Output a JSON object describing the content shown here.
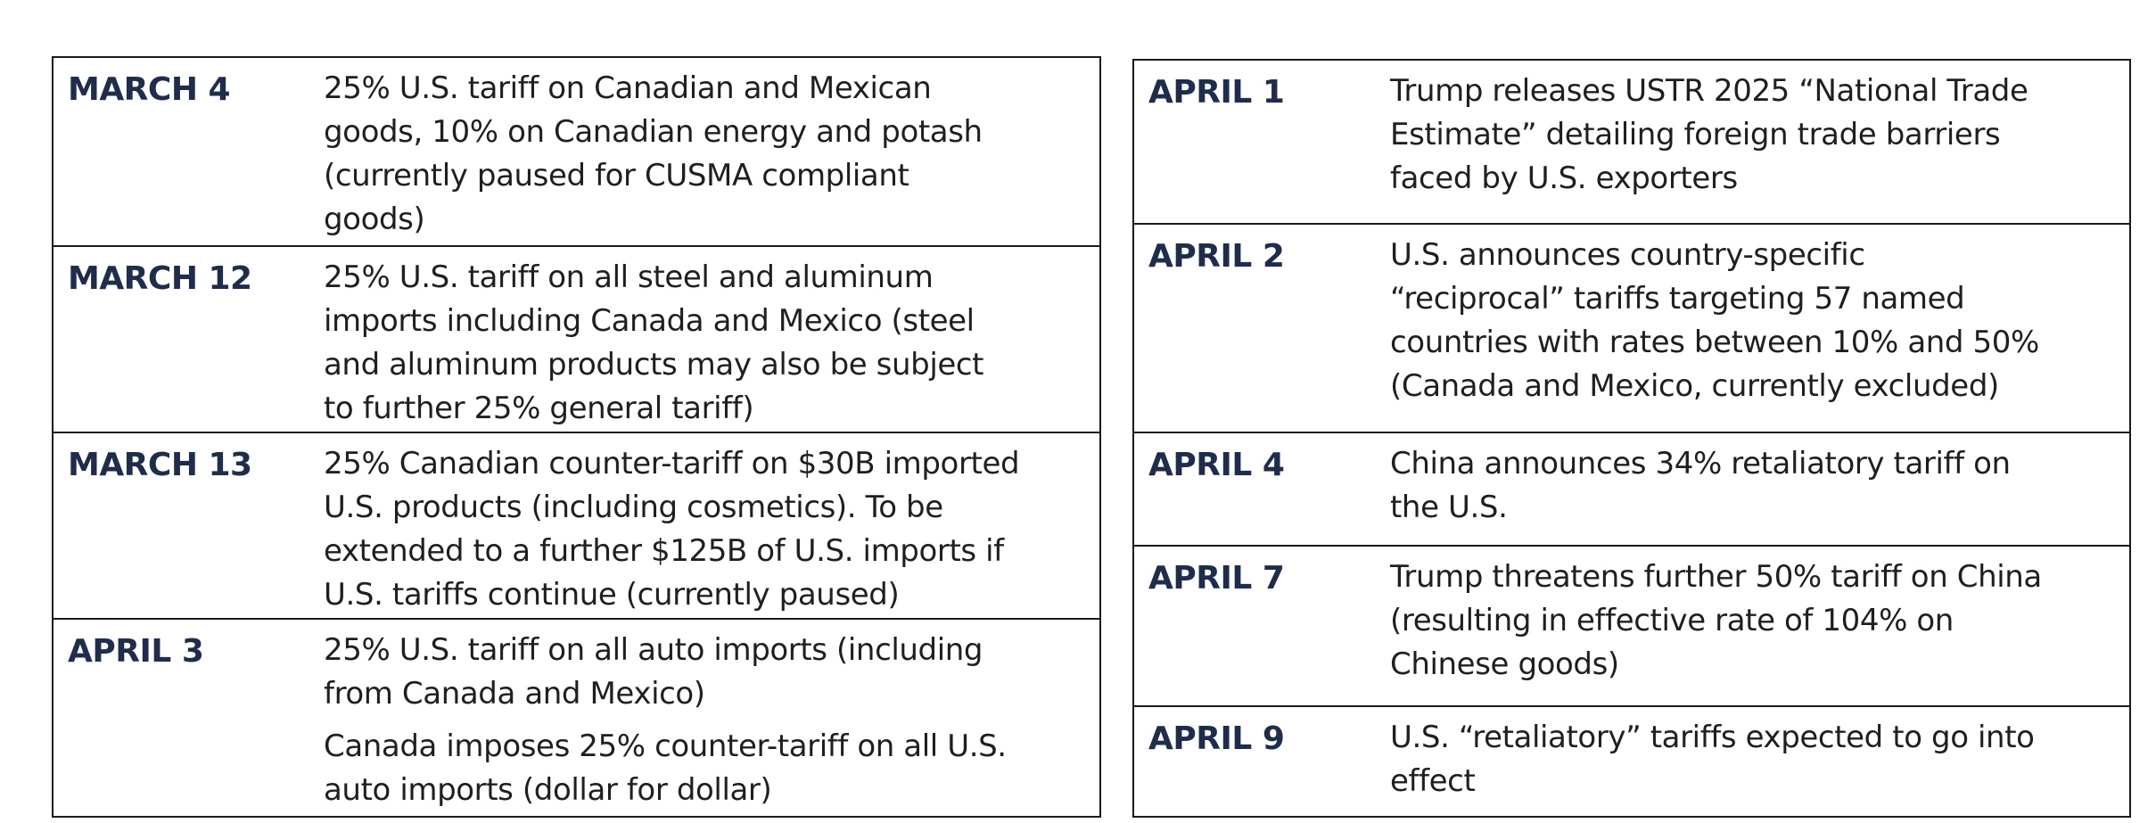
{
  "left_events": [
    {
      "date": "MARCH 4",
      "lines": [
        "25% U.S. tariff on Canadian and Mexican",
        "goods, 10% on Canadian energy and potash",
        "(currently paused for CUSMA compliant",
        "goods)"
      ]
    },
    {
      "date": "MARCH 12",
      "lines": [
        "25% U.S. tariff on all steel and aluminum",
        "imports including Canada and Mexico (steel",
        "and aluminum products may also be subject",
        "to further 25% general tariff)"
      ]
    },
    {
      "date": "MARCH 13",
      "lines": [
        "25% Canadian counter-tariff on $30B imported",
        "U.S. products (including cosmetics).  To be",
        "extended to a further $125B of U.S. imports if",
        "U.S. tariffs continue (currently paused)"
      ]
    },
    {
      "date": "APRIL 3",
      "paragraph1": [
        "25% U.S. tariff on all auto imports (including",
        "from Canada and Mexico)"
      ],
      "paragraph2": [
        "Canada imposes 25% counter-tariff on all U.S.",
        "auto imports (dollar for dollar)"
      ]
    }
  ],
  "right_events": [
    {
      "date": "APRIL 1",
      "lines": [
        "Trump releases USTR 2025 “National Trade",
        "Estimate” detailing foreign trade barriers",
        "faced by U.S. exporters"
      ]
    },
    {
      "date": "APRIL 2",
      "lines": [
        "U.S. announces country-specific",
        "“reciprocal” tariffs targeting 57 named",
        "countries with rates between 10% and 50%",
        "(Canada and Mexico, currently excluded)"
      ]
    },
    {
      "date": "APRIL 4",
      "lines": [
        "China announces 34% retaliatory tariff on",
        "the U.S."
      ]
    },
    {
      "date": "APRIL 7",
      "lines": [
        "Trump threatens further 50% tariff on China",
        "(resulting in effective rate of 104% on",
        "Chinese goods)"
      ]
    },
    {
      "date": "APRIL 9",
      "lines": [
        "U.S. “retaliatory” tariffs expected to go into",
        "effect"
      ]
    }
  ]
}
